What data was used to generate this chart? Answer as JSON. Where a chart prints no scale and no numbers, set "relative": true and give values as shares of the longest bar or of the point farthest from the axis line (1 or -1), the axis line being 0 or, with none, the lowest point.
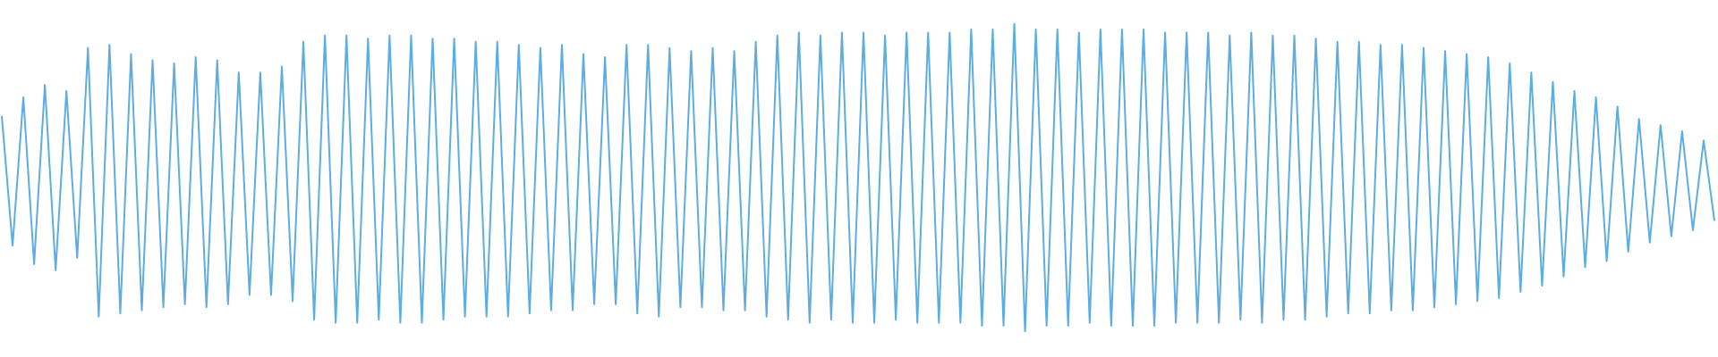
{
  "chart_data": {
    "type": "line",
    "relative": true,
    "categories": [
      null,
      null,
      null,
      null,
      null,
      null,
      null,
      null,
      null,
      null,
      null,
      null,
      null,
      null,
      null,
      null,
      null,
      null,
      null,
      null,
      null,
      null,
      null,
      null,
      null,
      null,
      null,
      null,
      null,
      null,
      null,
      null,
      null,
      null,
      null,
      null,
      null,
      null,
      null,
      null,
      null,
      null,
      null,
      null,
      null,
      null,
      null,
      null,
      null,
      null,
      null,
      null,
      null,
      null,
      null,
      null,
      null,
      null,
      null,
      null,
      null,
      null,
      null,
      null,
      null,
      null,
      null,
      null,
      null,
      null,
      null,
      null,
      null,
      null,
      null,
      null,
      null,
      null,
      null,
      null,
      null,
      null,
      null,
      null,
      null,
      null,
      null,
      null,
      null,
      null,
      null,
      null,
      null,
      null,
      null,
      null,
      null,
      null,
      null,
      null,
      null,
      null,
      null,
      null,
      null,
      null,
      null,
      null,
      null,
      null,
      null,
      null,
      null,
      null,
      null,
      null,
      null,
      null,
      null,
      null,
      null,
      null,
      null,
      null,
      null,
      null,
      null,
      null,
      null,
      null,
      null,
      null,
      null,
      null,
      null,
      null,
      null,
      null,
      null,
      null,
      null,
      null,
      null,
      null,
      null,
      null,
      null,
      null,
      null,
      null,
      null,
      null,
      null,
      null,
      null,
      null,
      null,
      null,
      null,
      null
    ],
    "series": [
      {
        "color": "#5dade2",
        "values": [
          0.7,
          0.28,
          0.76,
          0.22,
          0.8,
          0.2,
          0.78,
          0.24,
          0.92,
          0.05,
          0.93,
          0.06,
          0.9,
          0.07,
          0.88,
          0.08,
          0.87,
          0.09,
          0.89,
          0.08,
          0.88,
          0.09,
          0.84,
          0.12,
          0.84,
          0.12,
          0.86,
          0.1,
          0.94,
          0.04,
          0.96,
          0.03,
          0.96,
          0.03,
          0.95,
          0.04,
          0.96,
          0.03,
          0.96,
          0.03,
          0.95,
          0.04,
          0.95,
          0.05,
          0.94,
          0.05,
          0.94,
          0.05,
          0.93,
          0.06,
          0.92,
          0.07,
          0.93,
          0.07,
          0.9,
          0.09,
          0.89,
          0.09,
          0.93,
          0.06,
          0.93,
          0.05,
          0.92,
          0.08,
          0.91,
          0.08,
          0.92,
          0.07,
          0.91,
          0.07,
          0.94,
          0.05,
          0.96,
          0.04,
          0.97,
          0.03,
          0.96,
          0.04,
          0.97,
          0.03,
          0.97,
          0.03,
          0.96,
          0.04,
          0.97,
          0.03,
          0.97,
          0.03,
          0.97,
          0.03,
          0.98,
          0.02,
          0.98,
          0.02,
          1,
          0,
          0.98,
          0.02,
          0.98,
          0.02,
          0.97,
          0.03,
          0.98,
          0.02,
          0.98,
          0.02,
          0.98,
          0.02,
          0.97,
          0.03,
          0.97,
          0.03,
          0.97,
          0.03,
          0.96,
          0.04,
          0.97,
          0.03,
          0.96,
          0.04,
          0.96,
          0.04,
          0.95,
          0.05,
          0.94,
          0.06,
          0.94,
          0.06,
          0.93,
          0.07,
          0.93,
          0.07,
          0.92,
          0.08,
          0.91,
          0.09,
          0.9,
          0.1,
          0.89,
          0.11,
          0.87,
          0.13,
          0.84,
          0.15,
          0.81,
          0.18,
          0.78,
          0.21,
          0.76,
          0.23,
          0.73,
          0.26,
          0.69,
          0.29,
          0.67,
          0.31,
          0.65,
          0.33,
          0.62,
          0.36
        ]
      }
    ]
  }
}
